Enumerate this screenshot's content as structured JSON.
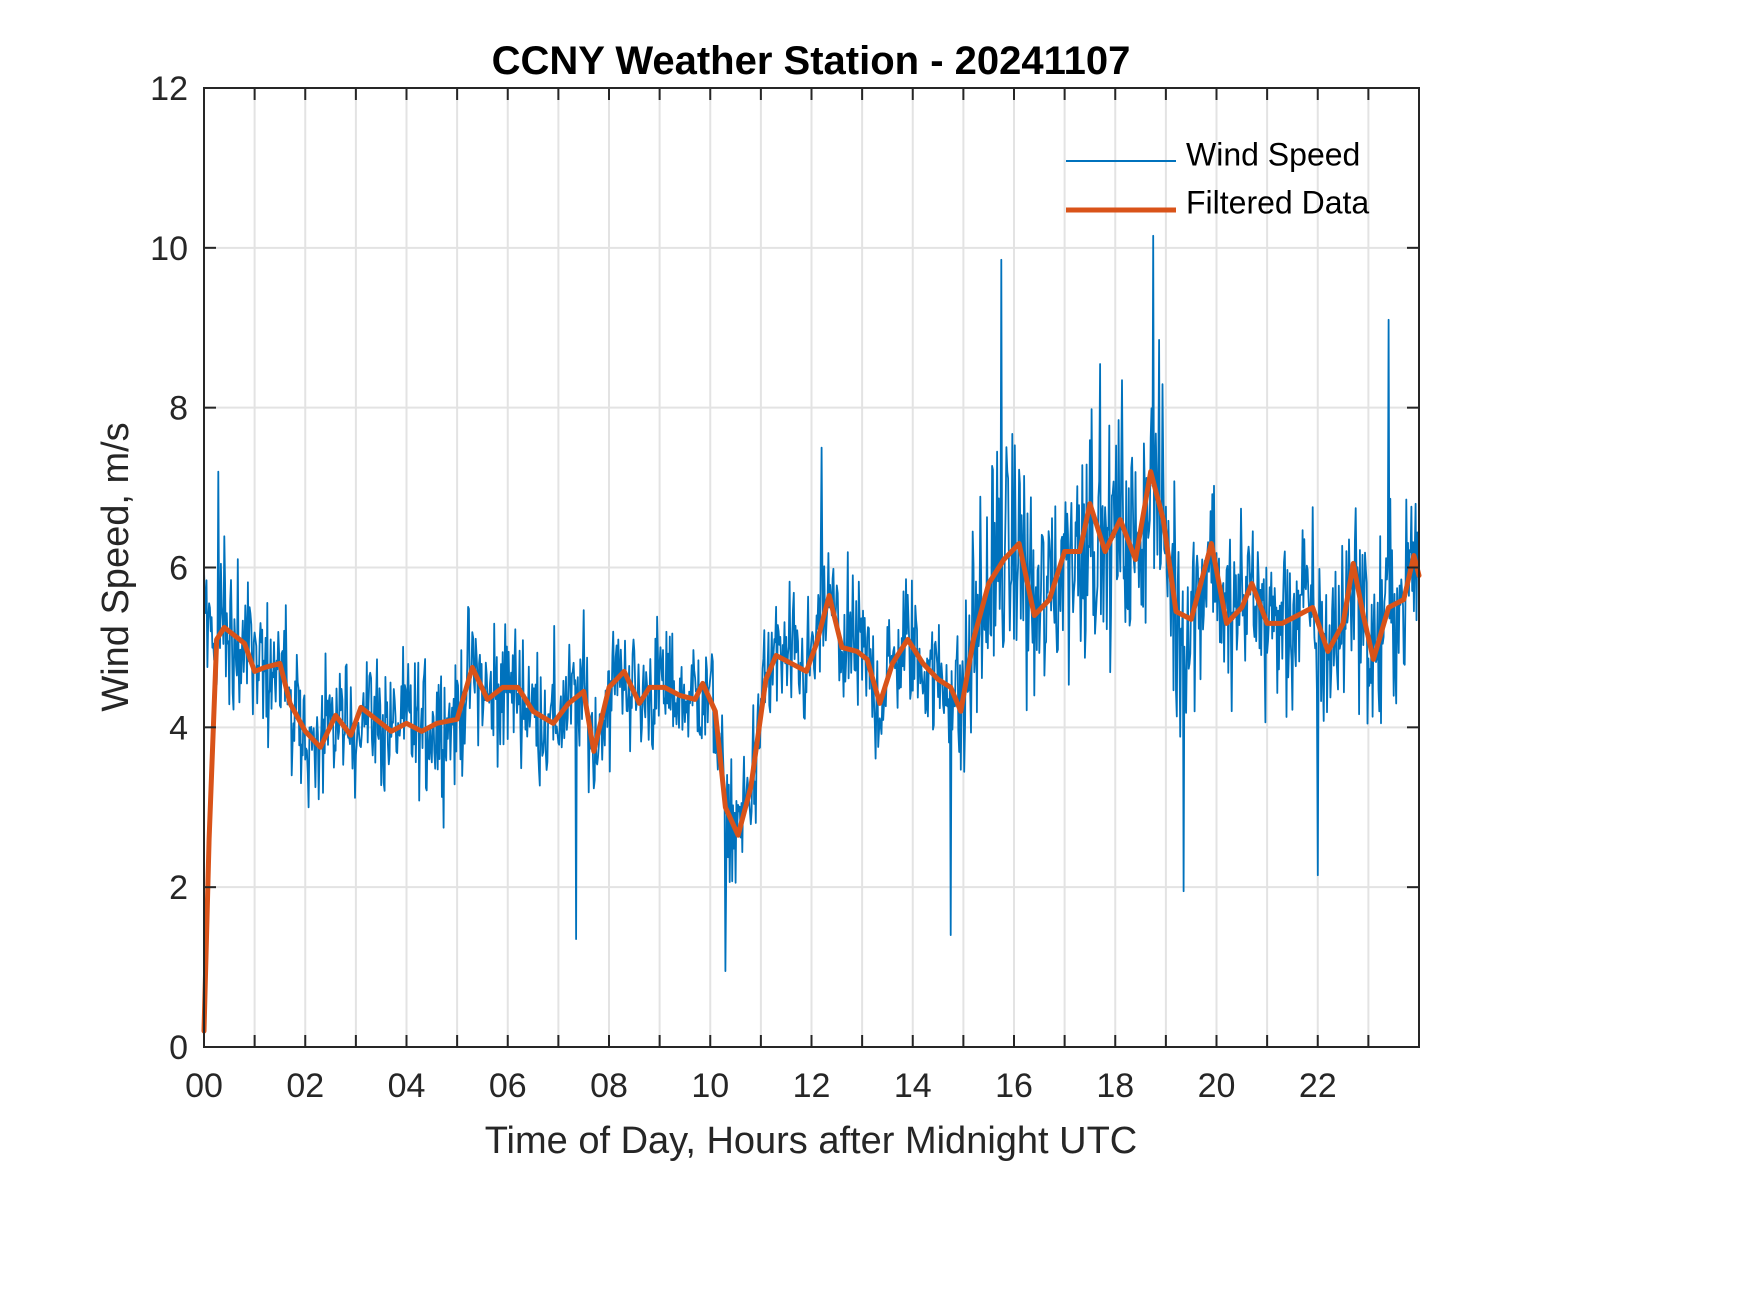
{
  "chart_data": {
    "type": "line",
    "title": "CCNY Weather Station - 20241107",
    "xlabel": "Time of Day, Hours after Midnight UTC",
    "ylabel": "Wind Speed, m/s",
    "xlim": [
      0,
      24
    ],
    "ylim": [
      0,
      12
    ],
    "x_ticks": [
      0,
      2,
      4,
      6,
      8,
      10,
      12,
      14,
      16,
      18,
      20,
      22
    ],
    "x_tick_labels": [
      "00",
      "02",
      "04",
      "06",
      "08",
      "10",
      "12",
      "14",
      "16",
      "18",
      "20",
      "22"
    ],
    "x_minor_grid_step": 1,
    "y_ticks": [
      0,
      2,
      4,
      6,
      8,
      10,
      12
    ],
    "y_tick_labels": [
      "0",
      "2",
      "4",
      "6",
      "8",
      "10",
      "12"
    ],
    "grid": true,
    "legend": {
      "placement": "top-right",
      "entries": [
        "Wind Speed",
        "Filtered Data"
      ]
    },
    "series": [
      {
        "name": "Wind Speed",
        "color": "#0072BD",
        "kind": "raw-noisy",
        "sampling_minutes": 1,
        "notable_points": [
          {
            "x": 0.28,
            "y": 7.2
          },
          {
            "x": 7.35,
            "y": 1.35
          },
          {
            "x": 10.3,
            "y": 0.95
          },
          {
            "x": 12.2,
            "y": 7.5
          },
          {
            "x": 14.75,
            "y": 1.4
          },
          {
            "x": 15.75,
            "y": 9.85
          },
          {
            "x": 18.75,
            "y": 10.15
          },
          {
            "x": 19.35,
            "y": 1.95
          },
          {
            "x": 22.0,
            "y": 2.15
          },
          {
            "x": 23.4,
            "y": 9.1
          }
        ]
      },
      {
        "name": "Filtered Data",
        "color": "#D95319",
        "x": [
          0.0,
          0.1,
          0.25,
          0.4,
          0.6,
          0.8,
          1.0,
          1.2,
          1.5,
          1.7,
          2.0,
          2.3,
          2.6,
          2.9,
          3.1,
          3.4,
          3.7,
          4.0,
          4.3,
          4.6,
          5.0,
          5.3,
          5.6,
          5.9,
          6.2,
          6.5,
          6.9,
          7.2,
          7.5,
          7.7,
          8.0,
          8.3,
          8.6,
          8.8,
          9.1,
          9.4,
          9.7,
          9.85,
          10.1,
          10.3,
          10.55,
          10.8,
          11.1,
          11.3,
          11.6,
          11.9,
          12.1,
          12.35,
          12.6,
          12.9,
          13.1,
          13.35,
          13.6,
          13.9,
          14.2,
          14.5,
          14.75,
          14.95,
          15.2,
          15.5,
          15.8,
          16.1,
          16.4,
          16.7,
          17.0,
          17.3,
          17.5,
          17.8,
          18.1,
          18.4,
          18.7,
          18.95,
          19.2,
          19.5,
          19.9,
          20.2,
          20.5,
          20.7,
          21.0,
          21.3,
          21.6,
          21.9,
          22.2,
          22.5,
          22.7,
          22.9,
          23.1,
          23.4,
          23.7,
          23.9,
          24.0
        ],
        "y": [
          0.2,
          2.6,
          5.1,
          5.25,
          5.15,
          5.05,
          4.7,
          4.75,
          4.8,
          4.3,
          3.95,
          3.75,
          4.15,
          3.9,
          4.25,
          4.1,
          3.95,
          4.05,
          3.95,
          4.05,
          4.1,
          4.75,
          4.35,
          4.5,
          4.5,
          4.2,
          4.05,
          4.3,
          4.45,
          3.7,
          4.5,
          4.7,
          4.3,
          4.5,
          4.5,
          4.4,
          4.35,
          4.55,
          4.2,
          3.0,
          2.65,
          3.25,
          4.6,
          4.9,
          4.8,
          4.7,
          5.05,
          5.65,
          5.0,
          4.95,
          4.85,
          4.3,
          4.8,
          5.1,
          4.8,
          4.6,
          4.5,
          4.2,
          5.1,
          5.8,
          6.1,
          6.3,
          5.4,
          5.6,
          6.2,
          6.2,
          6.8,
          6.2,
          6.6,
          6.1,
          7.2,
          6.6,
          5.45,
          5.35,
          6.3,
          5.3,
          5.5,
          5.8,
          5.3,
          5.3,
          5.4,
          5.5,
          4.95,
          5.3,
          6.05,
          5.4,
          4.85,
          5.5,
          5.6,
          6.15,
          5.9
        ]
      }
    ]
  },
  "colors": {
    "raw": "#0072BD",
    "filtered": "#D95319",
    "axis": "#262626",
    "grid": "#e3e3e3"
  }
}
